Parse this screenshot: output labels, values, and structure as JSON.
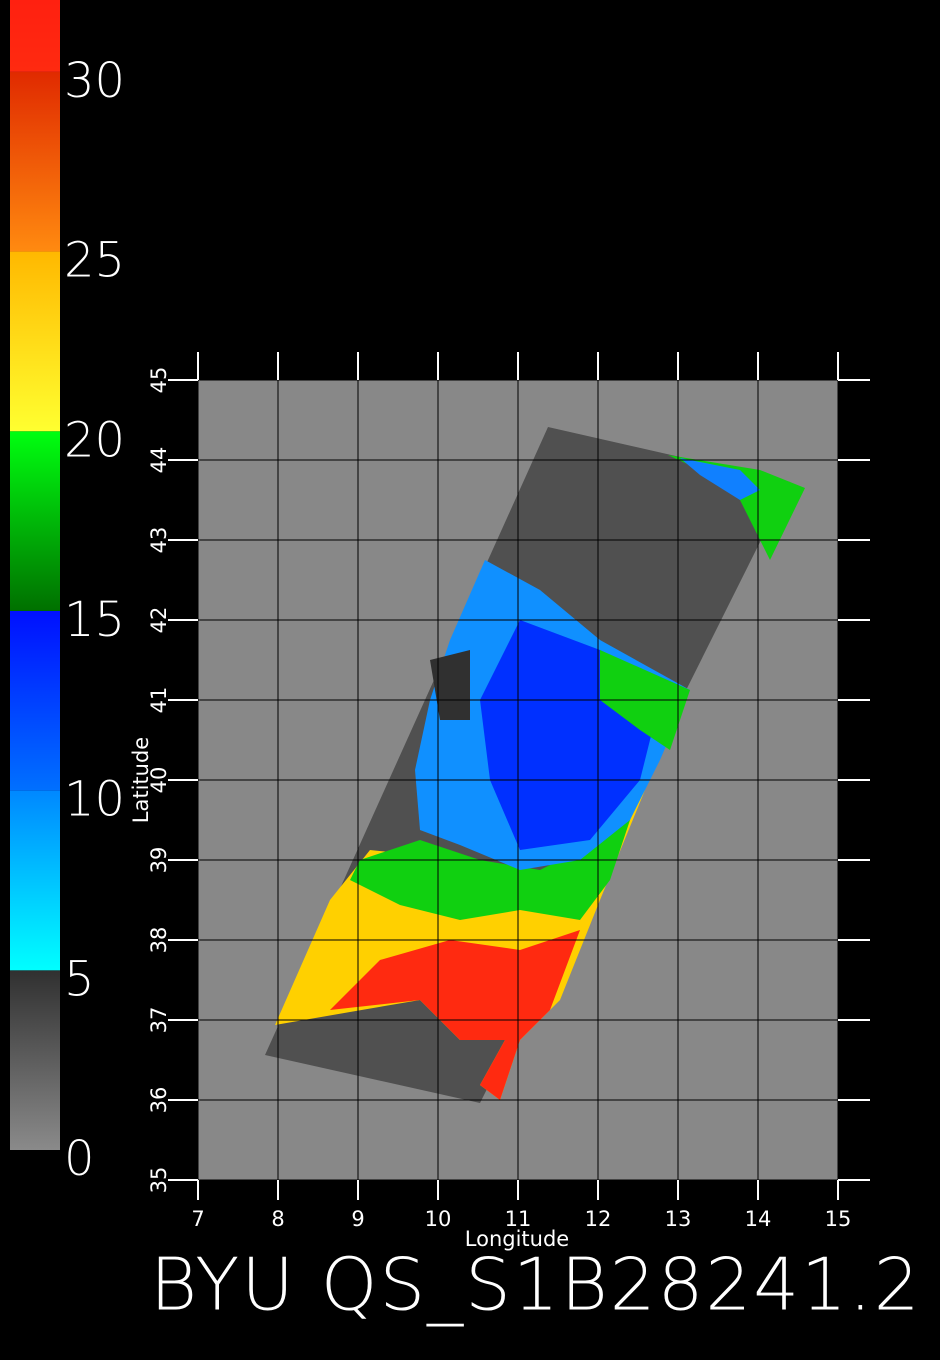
{
  "colorbar": {
    "range": [
      0,
      32
    ],
    "ticks": [
      0,
      5,
      10,
      15,
      20,
      25,
      30
    ],
    "segments": [
      {
        "from": 0,
        "to": 5,
        "colors": [
          "#8a8a8a",
          "#303030"
        ]
      },
      {
        "from": 5,
        "to": 10,
        "colors": [
          "#00ffff",
          "#0088ff"
        ]
      },
      {
        "from": 10,
        "to": 15,
        "colors": [
          "#0070ff",
          "#0010ff"
        ]
      },
      {
        "from": 15,
        "to": 20,
        "colors": [
          "#007000",
          "#00ff10"
        ]
      },
      {
        "from": 20,
        "to": 25,
        "colors": [
          "#ffff30",
          "#ffb800"
        ]
      },
      {
        "from": 25,
        "to": 30,
        "colors": [
          "#ff8a10",
          "#e02a00"
        ]
      },
      {
        "from": 30,
        "to": 32,
        "colors": [
          "#ff2a10",
          "#ff2010"
        ]
      }
    ]
  },
  "map": {
    "lon_range": [
      7,
      15
    ],
    "lat_range": [
      35,
      45
    ],
    "lon_ticks": [
      7,
      8,
      9,
      10,
      11,
      12,
      13,
      14,
      15
    ],
    "lat_ticks": [
      35,
      36,
      37,
      38,
      39,
      40,
      41,
      42,
      43,
      44,
      45
    ],
    "x_label": "Longitude",
    "y_label": "Latitude"
  },
  "caption": "BYU QS_S1B28241.2"
}
